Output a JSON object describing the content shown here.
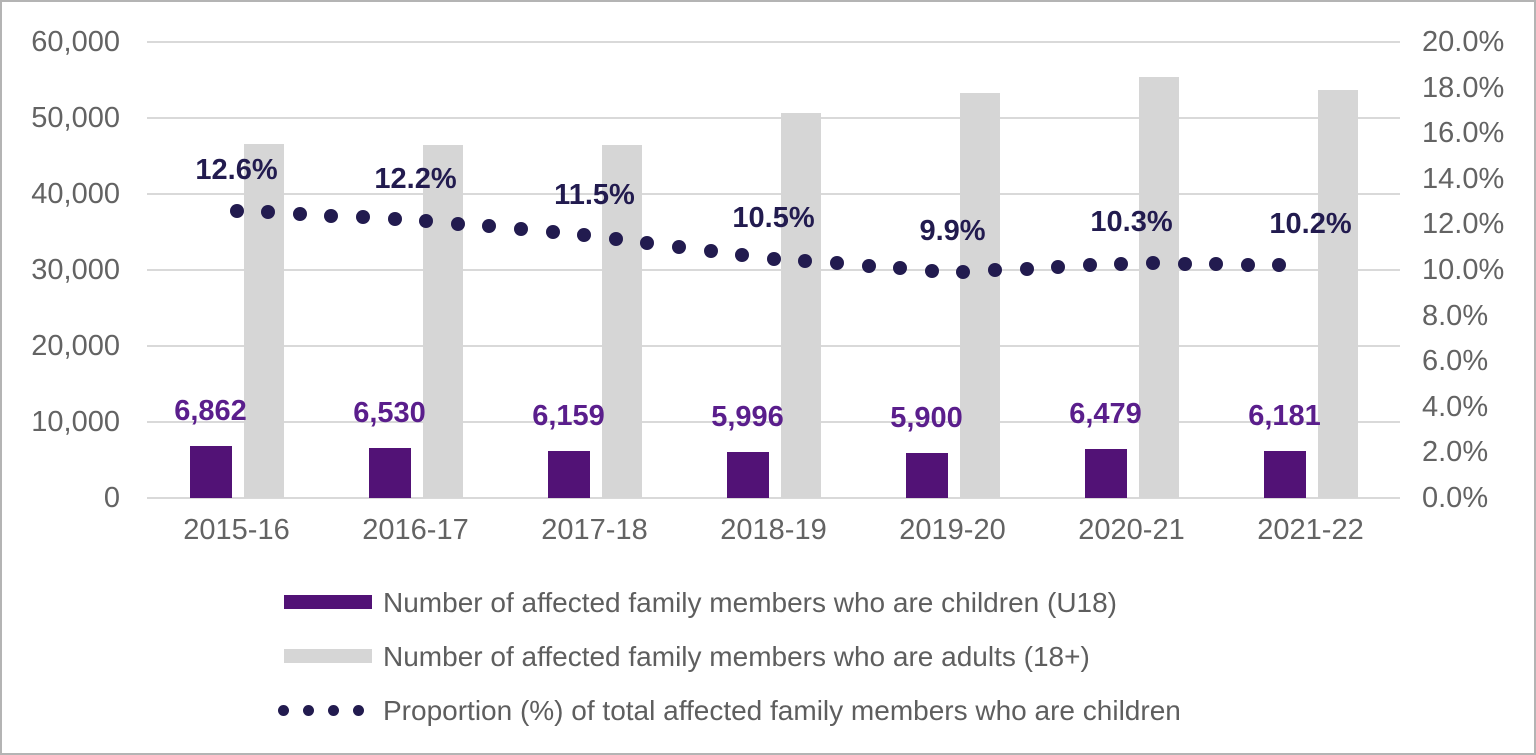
{
  "chart_data": {
    "type": "combo-bar-line",
    "title": "",
    "categories": [
      "2015-16",
      "2016-17",
      "2017-18",
      "2018-19",
      "2019-20",
      "2020-21",
      "2021-22"
    ],
    "series": [
      {
        "name": "Number of affected family members who are children (U18)",
        "type": "bar",
        "axis": "left",
        "color": "#521276",
        "values": [
          6862,
          6530,
          6159,
          5996,
          5900,
          6479,
          6181
        ],
        "labels": [
          "6,862",
          "6,530",
          "6,159",
          "5,996",
          "5,900",
          "6,479",
          "6,181"
        ],
        "label_color": "#5a1e8c"
      },
      {
        "name": "Number of affected family members who are adults (18+)",
        "type": "bar",
        "axis": "left",
        "color": "#d6d6d6",
        "values": [
          46600,
          46400,
          46500,
          50600,
          53300,
          55400,
          53700
        ]
      },
      {
        "name": "Proportion (%) of total affected family members who are children",
        "type": "dotted-line",
        "axis": "right",
        "color": "#221b4f",
        "values": [
          12.6,
          12.2,
          11.5,
          10.5,
          9.9,
          10.3,
          10.2
        ],
        "labels": [
          "12.6%",
          "12.2%",
          "11.5%",
          "10.5%",
          "9.9%",
          "10.3%",
          "10.2%"
        ],
        "label_color": "#221b4f"
      }
    ],
    "left_axis": {
      "min": 0,
      "max": 60000,
      "ticks": [
        "60,000",
        "50,000",
        "40,000",
        "30,000",
        "20,000",
        "10,000",
        "0"
      ]
    },
    "right_axis": {
      "min": 0,
      "max": 20,
      "ticks": [
        "20.0%",
        "18.0%",
        "16.0%",
        "14.0%",
        "12.0%",
        "10.0%",
        "8.0%",
        "6.0%",
        "4.0%",
        "2.0%",
        "0.0%"
      ]
    },
    "grid": "horizontal",
    "legend_position": "bottom"
  },
  "colors": {
    "grid": "#d9d9d9",
    "axis_text": "#636363",
    "legend_text": "#5e5e5e",
    "frame_border": "#b4b4b4"
  }
}
